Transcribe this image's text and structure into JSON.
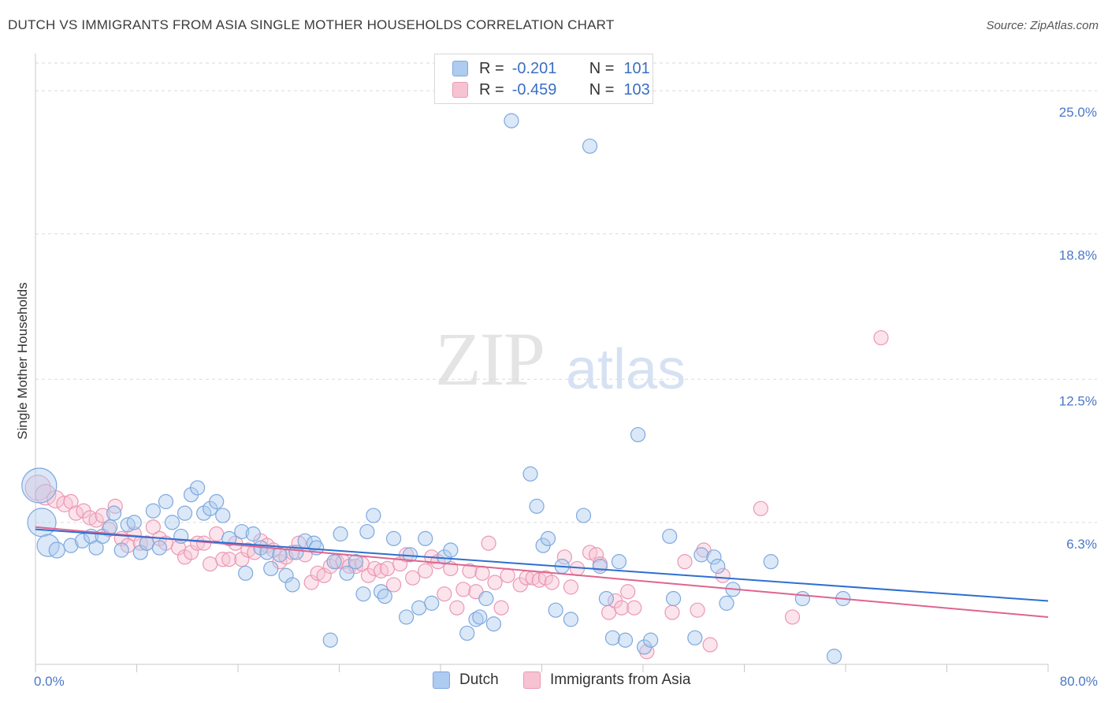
{
  "title": "DUTCH VS IMMIGRANTS FROM ASIA SINGLE MOTHER HOUSEHOLDS CORRELATION CHART",
  "source": "Source: ZipAtlas.com",
  "watermark": {
    "zip": "ZIP",
    "atlas": "atlas"
  },
  "legend": {
    "rows": [
      {
        "r_label": "R =",
        "r_value": "-0.201",
        "n_label": "N =",
        "n_value": "101"
      },
      {
        "r_label": "R =",
        "r_value": "-0.459",
        "n_label": "N =",
        "n_value": "103"
      }
    ]
  },
  "colors": {
    "dutch_fill": "#aecbf0",
    "dutch_stroke": "#7fa8de",
    "dutch_line": "#2e6fcf",
    "asia_fill": "#f7c3d3",
    "asia_stroke": "#eb98b4",
    "asia_line": "#e0648f",
    "tick": "#4a78c8",
    "grid": "#dadada"
  },
  "chart_data": {
    "type": "scatter",
    "title": "DUTCH VS IMMIGRANTS FROM ASIA SINGLE MOTHER HOUSEHOLDS CORRELATION CHART",
    "xlabel": "",
    "ylabel": "Single Mother Households",
    "xlim": [
      0,
      80
    ],
    "ylim": [
      0,
      26.2
    ],
    "x_tick_labels": [
      "0.0%",
      "80.0%"
    ],
    "y_ticks": [
      6.3,
      12.5,
      18.8,
      25.0
    ],
    "y_tick_labels": [
      "6.3%",
      "12.5%",
      "18.8%",
      "25.0%"
    ],
    "grid": "horizontal dashed",
    "legend_position": "bottom",
    "series": [
      {
        "name": "Dutch",
        "R": -0.201,
        "N": 101,
        "trend": {
          "x": [
            0,
            80
          ],
          "y": [
            6.0,
            2.9
          ]
        },
        "points": [
          [
            0.3,
            7.9,
            22
          ],
          [
            0.5,
            6.3,
            18
          ],
          [
            1,
            5.3,
            14
          ],
          [
            1.7,
            5.1,
            10
          ],
          [
            2.8,
            5.3,
            9
          ],
          [
            3.7,
            5.5,
            9
          ],
          [
            4.4,
            5.7,
            9
          ],
          [
            4.8,
            5.2,
            9
          ],
          [
            5.3,
            5.7,
            9
          ],
          [
            5.9,
            6.1,
            9
          ],
          [
            6.2,
            6.7,
            9
          ],
          [
            6.8,
            5.1,
            9
          ],
          [
            7.3,
            6.2,
            9
          ],
          [
            7.8,
            6.3,
            9
          ],
          [
            8.3,
            5.0,
            9
          ],
          [
            8.8,
            5.4,
            9
          ],
          [
            9.3,
            6.8,
            9
          ],
          [
            9.8,
            5.2,
            9
          ],
          [
            10.3,
            7.2,
            9
          ],
          [
            10.8,
            6.3,
            9
          ],
          [
            11.5,
            5.7,
            9
          ],
          [
            11.8,
            6.7,
            9
          ],
          [
            12.3,
            7.5,
            9
          ],
          [
            12.8,
            7.8,
            9
          ],
          [
            13.3,
            6.7,
            9
          ],
          [
            13.8,
            6.9,
            9
          ],
          [
            14.3,
            7.2,
            9
          ],
          [
            14.8,
            6.6,
            9
          ],
          [
            15.3,
            5.6,
            9
          ],
          [
            16.3,
            5.9,
            9
          ],
          [
            16.6,
            4.1,
            9
          ],
          [
            17.2,
            5.8,
            9
          ],
          [
            17.8,
            5.2,
            9
          ],
          [
            18.3,
            5.0,
            9
          ],
          [
            18.6,
            4.3,
            9
          ],
          [
            19.3,
            4.9,
            9
          ],
          [
            19.8,
            4.0,
            9
          ],
          [
            20.3,
            3.6,
            9
          ],
          [
            20.6,
            5.0,
            9
          ],
          [
            21.3,
            5.5,
            9
          ],
          [
            22.0,
            5.4,
            9
          ],
          [
            22.2,
            5.2,
            9
          ],
          [
            23.3,
            1.2,
            9
          ],
          [
            23.6,
            4.6,
            9
          ],
          [
            24.1,
            5.8,
            9
          ],
          [
            24.6,
            4.1,
            9
          ],
          [
            25.3,
            4.6,
            9
          ],
          [
            25.9,
            3.2,
            9
          ],
          [
            26.2,
            5.9,
            9
          ],
          [
            26.7,
            6.6,
            9
          ],
          [
            27.3,
            3.3,
            9
          ],
          [
            27.6,
            3.1,
            9
          ],
          [
            28.3,
            5.6,
            9
          ],
          [
            29.3,
            2.2,
            9
          ],
          [
            29.6,
            4.9,
            9
          ],
          [
            30.3,
            2.6,
            9
          ],
          [
            30.8,
            5.6,
            9
          ],
          [
            31.3,
            2.8,
            9
          ],
          [
            32.3,
            4.8,
            9
          ],
          [
            32.8,
            5.1,
            9
          ],
          [
            34.1,
            1.5,
            9
          ],
          [
            34.8,
            2.1,
            9
          ],
          [
            35.1,
            2.2,
            9
          ],
          [
            35.6,
            3.0,
            9
          ],
          [
            36.2,
            1.9,
            9
          ],
          [
            37.6,
            23.7,
            9
          ],
          [
            39.1,
            8.4,
            9
          ],
          [
            39.6,
            7.0,
            9
          ],
          [
            40.1,
            5.3,
            9
          ],
          [
            40.5,
            5.6,
            9
          ],
          [
            41.1,
            2.5,
            9
          ],
          [
            41.6,
            4.4,
            9
          ],
          [
            42.3,
            2.1,
            9
          ],
          [
            43.3,
            6.6,
            9
          ],
          [
            43.8,
            22.6,
            9
          ],
          [
            44.6,
            4.4,
            9
          ],
          [
            45.1,
            3.0,
            9
          ],
          [
            45.6,
            1.3,
            9
          ],
          [
            46.1,
            4.6,
            9
          ],
          [
            46.6,
            1.2,
            9
          ],
          [
            47.6,
            10.1,
            9
          ],
          [
            48.1,
            0.9,
            9
          ],
          [
            48.6,
            1.2,
            9
          ],
          [
            50.1,
            5.7,
            9
          ],
          [
            50.4,
            3.0,
            9
          ],
          [
            52.1,
            1.3,
            9
          ],
          [
            52.6,
            4.9,
            9
          ],
          [
            53.6,
            4.8,
            9
          ],
          [
            53.9,
            4.4,
            9
          ],
          [
            54.6,
            2.8,
            9
          ],
          [
            55.1,
            3.4,
            9
          ],
          [
            58.1,
            4.6,
            9
          ],
          [
            60.6,
            3.0,
            9
          ],
          [
            63.1,
            0.5,
            9
          ],
          [
            63.8,
            3.0,
            9
          ]
        ]
      },
      {
        "name": "Immigrants from Asia",
        "R": -0.459,
        "N": 103,
        "trend": {
          "x": [
            0,
            80
          ],
          "y": [
            6.1,
            2.2
          ]
        },
        "points": [
          [
            0.2,
            7.8,
            16
          ],
          [
            0.8,
            7.5,
            13
          ],
          [
            1.6,
            7.3,
            11
          ],
          [
            2.3,
            7.1,
            10
          ],
          [
            2.8,
            7.2,
            9
          ],
          [
            3.2,
            6.7,
            9
          ],
          [
            3.8,
            6.8,
            9
          ],
          [
            4.3,
            6.5,
            9
          ],
          [
            4.8,
            6.4,
            9
          ],
          [
            5.3,
            6.6,
            9
          ],
          [
            5.8,
            6.0,
            9
          ],
          [
            6.3,
            7.0,
            9
          ],
          [
            6.8,
            5.6,
            9
          ],
          [
            7.3,
            5.3,
            9
          ],
          [
            7.8,
            5.8,
            9
          ],
          [
            8.3,
            5.4,
            9
          ],
          [
            8.8,
            5.4,
            9
          ],
          [
            9.3,
            6.1,
            9
          ],
          [
            9.8,
            5.6,
            9
          ],
          [
            10.3,
            5.4,
            9
          ],
          [
            11.3,
            5.2,
            9
          ],
          [
            11.8,
            4.8,
            9
          ],
          [
            12.3,
            5.0,
            9
          ],
          [
            12.8,
            5.4,
            9
          ],
          [
            13.3,
            5.4,
            9
          ],
          [
            13.8,
            4.5,
            9
          ],
          [
            14.3,
            5.8,
            9
          ],
          [
            14.8,
            4.7,
            9
          ],
          [
            15.3,
            4.7,
            9
          ],
          [
            15.8,
            5.4,
            9
          ],
          [
            16.3,
            4.7,
            9
          ],
          [
            16.8,
            5.1,
            9
          ],
          [
            17.3,
            5.0,
            9
          ],
          [
            17.8,
            5.5,
            9
          ],
          [
            18.3,
            5.3,
            9
          ],
          [
            18.8,
            5.1,
            9
          ],
          [
            19.3,
            4.6,
            9
          ],
          [
            19.8,
            4.8,
            9
          ],
          [
            20.3,
            5.0,
            9
          ],
          [
            20.8,
            5.4,
            9
          ],
          [
            21.3,
            4.9,
            9
          ],
          [
            21.8,
            3.7,
            9
          ],
          [
            22.3,
            4.1,
            9
          ],
          [
            22.8,
            4.0,
            9
          ],
          [
            23.3,
            4.4,
            9
          ],
          [
            23.8,
            4.6,
            9
          ],
          [
            24.3,
            4.6,
            9
          ],
          [
            24.8,
            4.4,
            9
          ],
          [
            25.3,
            4.4,
            9
          ],
          [
            25.8,
            4.5,
            9
          ],
          [
            26.3,
            4.0,
            9
          ],
          [
            26.8,
            4.3,
            9
          ],
          [
            27.3,
            4.2,
            9
          ],
          [
            27.8,
            4.3,
            9
          ],
          [
            28.3,
            3.6,
            9
          ],
          [
            28.8,
            4.5,
            9
          ],
          [
            29.3,
            4.9,
            9
          ],
          [
            29.8,
            3.9,
            9
          ],
          [
            30.8,
            4.2,
            9
          ],
          [
            31.3,
            4.8,
            9
          ],
          [
            31.8,
            4.6,
            9
          ],
          [
            32.3,
            3.2,
            9
          ],
          [
            32.8,
            4.3,
            9
          ],
          [
            33.3,
            2.6,
            9
          ],
          [
            33.8,
            3.4,
            9
          ],
          [
            34.3,
            4.2,
            9
          ],
          [
            34.8,
            3.3,
            9
          ],
          [
            35.3,
            4.1,
            9
          ],
          [
            35.8,
            5.4,
            9
          ],
          [
            36.3,
            3.7,
            9
          ],
          [
            36.8,
            2.6,
            9
          ],
          [
            37.3,
            4.0,
            9
          ],
          [
            38.3,
            3.6,
            9
          ],
          [
            38.8,
            3.9,
            9
          ],
          [
            39.3,
            3.9,
            9
          ],
          [
            39.8,
            3.8,
            9
          ],
          [
            40.3,
            3.9,
            9
          ],
          [
            40.8,
            3.7,
            9
          ],
          [
            41.8,
            4.8,
            9
          ],
          [
            42.3,
            3.5,
            9
          ],
          [
            42.8,
            4.3,
            9
          ],
          [
            43.8,
            5.0,
            9
          ],
          [
            44.3,
            4.9,
            9
          ],
          [
            44.6,
            4.5,
            9
          ],
          [
            45.3,
            2.4,
            9
          ],
          [
            45.8,
            2.9,
            9
          ],
          [
            46.3,
            2.6,
            9
          ],
          [
            46.8,
            3.3,
            9
          ],
          [
            47.3,
            2.6,
            9
          ],
          [
            48.3,
            0.7,
            9
          ],
          [
            50.3,
            2.4,
            9
          ],
          [
            51.3,
            4.6,
            9
          ],
          [
            52.3,
            2.5,
            9
          ],
          [
            52.8,
            5.1,
            9
          ],
          [
            53.3,
            1.0,
            9
          ],
          [
            54.3,
            4.0,
            9
          ],
          [
            57.3,
            6.9,
            9
          ],
          [
            59.8,
            2.2,
            9
          ],
          [
            66.8,
            14.3,
            9
          ]
        ]
      }
    ]
  }
}
